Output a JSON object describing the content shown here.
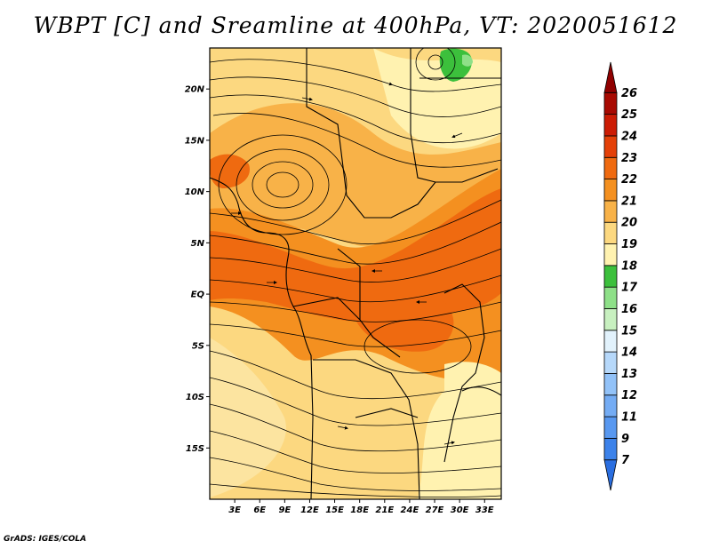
{
  "title": "WBPT [C] and Sreamline at 400hPa, VT: 2020051612",
  "footer": "GrADS: IGES/COLA",
  "map": {
    "lon_range": [
      0,
      35
    ],
    "lat_range": [
      -20,
      24
    ],
    "lat_ticks": [
      {
        "value": 20,
        "label": "20N"
      },
      {
        "value": 15,
        "label": "15N"
      },
      {
        "value": 10,
        "label": "10N"
      },
      {
        "value": 5,
        "label": "5N"
      },
      {
        "value": 0,
        "label": "EQ"
      },
      {
        "value": -5,
        "label": "5S"
      },
      {
        "value": -10,
        "label": "10S"
      },
      {
        "value": -15,
        "label": "15S"
      }
    ],
    "lon_ticks": [
      {
        "value": 3,
        "label": "3E"
      },
      {
        "value": 6,
        "label": "6E"
      },
      {
        "value": 9,
        "label": "9E"
      },
      {
        "value": 12,
        "label": "12E"
      },
      {
        "value": 15,
        "label": "15E"
      },
      {
        "value": 18,
        "label": "18E"
      },
      {
        "value": 21,
        "label": "21E"
      },
      {
        "value": 24,
        "label": "24E"
      },
      {
        "value": 27,
        "label": "27E"
      },
      {
        "value": 30,
        "label": "30E"
      },
      {
        "value": 33,
        "label": "33E"
      }
    ]
  },
  "colorbar": {
    "levels": [
      "7",
      "9",
      "11",
      "12",
      "13",
      "14",
      "15",
      "16",
      "17",
      "18",
      "19",
      "20",
      "21",
      "22",
      "23",
      "24",
      "25",
      "26"
    ],
    "colors": [
      "#2a6ee0",
      "#3c82ea",
      "#5898f0",
      "#74acf4",
      "#92c2f8",
      "#b6d8fa",
      "#e2f2fc",
      "#c8f0c0",
      "#8ee088",
      "#3cc03c",
      "#fff2b0",
      "#fcd880",
      "#f8b248",
      "#f49020",
      "#ef6a10",
      "#e44008",
      "#cc1c04",
      "#a80a02",
      "#900000"
    ]
  }
}
